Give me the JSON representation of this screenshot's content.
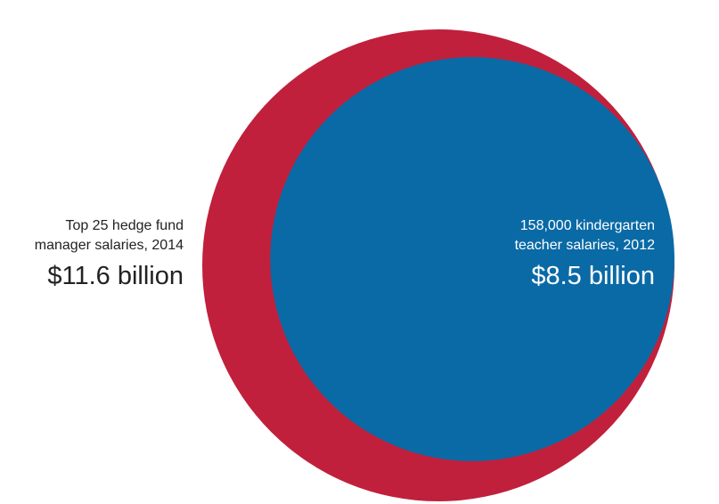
{
  "chart_data": {
    "type": "proportional-area",
    "title": "",
    "series": [
      {
        "line1": "Top 25 hedge fund",
        "line2": "manager salaries, 2014",
        "value_label": "$11.6 billion",
        "value": 11.6,
        "unit": "billion USD",
        "color": "#c0203c"
      },
      {
        "line1": "158,000 kindergarten",
        "line2": "teacher salaries, 2012",
        "value_label": "$8.5 billion",
        "value": 8.5,
        "unit": "billion USD",
        "color": "#0a6aa6"
      }
    ]
  }
}
